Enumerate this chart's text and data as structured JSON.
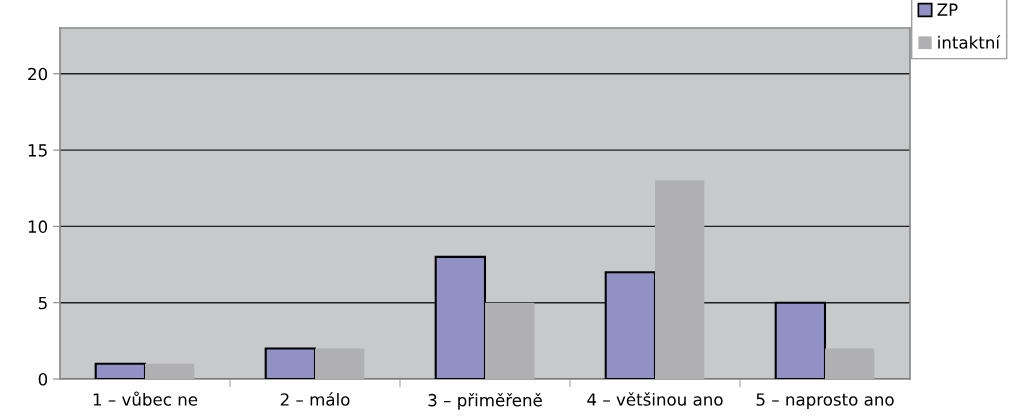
{
  "chart_data": {
    "type": "bar",
    "categories": [
      "1 – vůbec ne",
      "2 – málo",
      "3 – přiměřeně",
      "4 – většinou ano",
      "5 – naprosto ano"
    ],
    "series": [
      {
        "name": "ZP",
        "color": "#9191c5",
        "values": [
          1,
          2,
          8,
          7,
          5
        ]
      },
      {
        "name": "intaktní",
        "color": "#b0b0b3",
        "values": [
          1,
          2,
          5,
          13,
          2
        ]
      }
    ],
    "ylim": [
      0,
      23
    ],
    "yticks": [
      0,
      5,
      10,
      15,
      20
    ],
    "grid": "y",
    "legend": "top right"
  }
}
